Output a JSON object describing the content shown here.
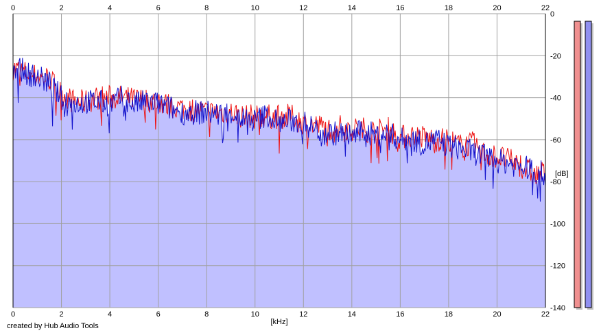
{
  "footer": {
    "credit": "created by Hub Audio Tools"
  },
  "colors": {
    "background": "#ffffff",
    "plot_fill": "#c0c0ff",
    "grid": "#a0a0a0",
    "left_channel": "#ee1111",
    "right_channel": "#1111cc",
    "left_meter_fill": "#f09090",
    "right_meter_fill": "#9090f0",
    "meter_shadow": "#c0c0c0"
  },
  "chart_data": {
    "type": "line",
    "title": "",
    "xlabel": "[kHz]",
    "ylabel": "[dB]",
    "xlim": [
      0,
      22
    ],
    "ylim": [
      -140,
      0
    ],
    "x_ticks": [
      "0",
      "2",
      "4",
      "6",
      "8",
      "10",
      "12",
      "14",
      "16",
      "18",
      "20",
      "22"
    ],
    "x_ticks_top": [
      "0",
      "2",
      "4",
      "6",
      "8",
      "10",
      "12",
      "14",
      "16",
      "18",
      "20",
      "22"
    ],
    "y_ticks": [
      "0",
      "-20",
      "-40",
      "-60",
      "-80",
      "-100",
      "-120",
      "-140"
    ],
    "grid": true,
    "legend": "none",
    "x": [
      0,
      0.5,
      1,
      1.5,
      2,
      2.5,
      3,
      3.5,
      4,
      4.5,
      5,
      5.5,
      6,
      6.5,
      7,
      7.5,
      8,
      8.5,
      9,
      9.5,
      10,
      10.5,
      11,
      11.5,
      12,
      12.5,
      13,
      13.5,
      14,
      14.5,
      15,
      15.5,
      16,
      16.5,
      17,
      17.5,
      18,
      18.5,
      19,
      19.5,
      20,
      20.5,
      21,
      21.5,
      22
    ],
    "series": [
      {
        "values": [
          -26,
          -28,
          -30,
          -31,
          -38,
          -42,
          -42,
          -40,
          -40,
          -40,
          -41,
          -41,
          -42,
          -44,
          -45,
          -46,
          -47,
          -47,
          -47,
          -49,
          -49,
          -49,
          -49,
          -49,
          -52,
          -53,
          -55,
          -54,
          -55,
          -55,
          -56,
          -55,
          -59,
          -58,
          -59,
          -60,
          -60,
          -63,
          -62,
          -67,
          -68,
          -70,
          -72,
          -77,
          -76
        ]
      },
      {
        "values": [
          -24,
          -28,
          -30,
          -33,
          -40,
          -43,
          -42,
          -42,
          -43,
          -40,
          -43,
          -42,
          -43,
          -45,
          -47,
          -47,
          -47,
          -48,
          -47,
          -50,
          -51,
          -48,
          -52,
          -51,
          -52,
          -55,
          -57,
          -57,
          -58,
          -56,
          -58,
          -57,
          -60,
          -60,
          -62,
          -60,
          -63,
          -64,
          -66,
          -68,
          -70,
          -71,
          -73,
          -74,
          -77
        ]
      }
    ],
    "meters": [
      {
        "channel": "left",
        "level_db": -140
      },
      {
        "channel": "right",
        "level_db": -140
      }
    ]
  }
}
